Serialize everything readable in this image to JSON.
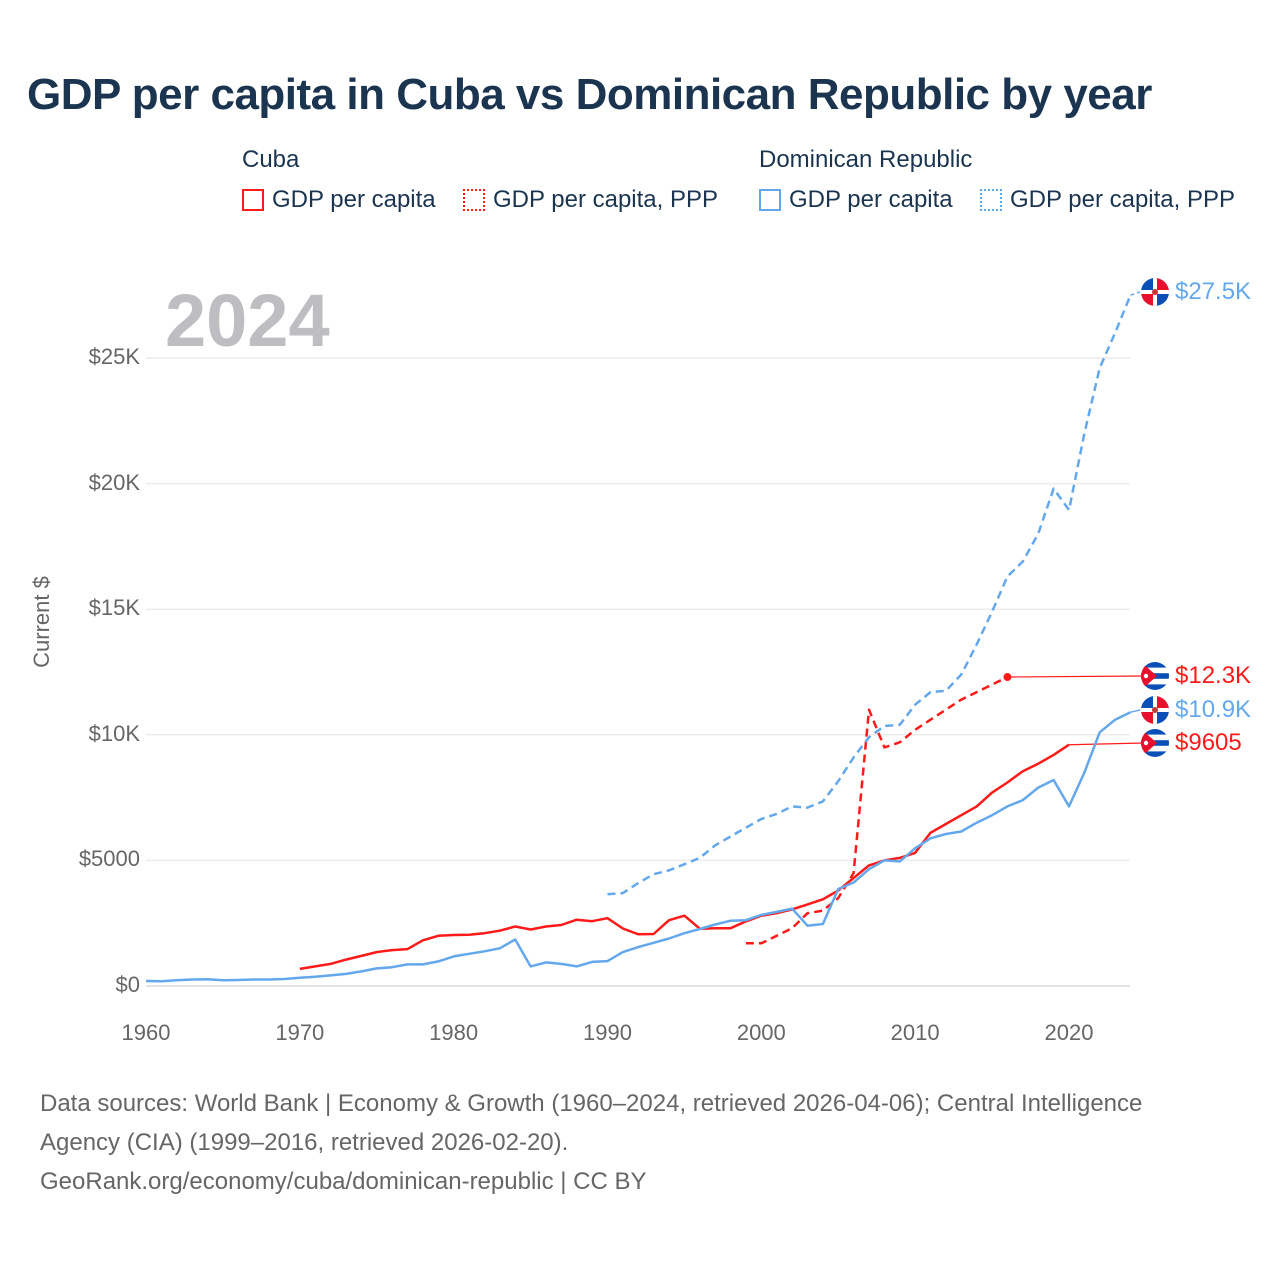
{
  "title": "GDP per capita in Cuba vs Dominican Republic by year",
  "legend": {
    "groups": [
      {
        "name": "Cuba",
        "items": [
          "GDP per capita",
          "GDP per capita, PPP"
        ]
      },
      {
        "name": "Dominican Republic",
        "items": [
          "GDP per capita",
          "GDP per capita, PPP"
        ]
      }
    ]
  },
  "colors": {
    "cuba": "#ff1a1a",
    "dr": "#64a8eb"
  },
  "chart_data": {
    "type": "line",
    "title": "GDP per capita in Cuba vs Dominican Republic by year",
    "year_label": "2024",
    "xlabel": "",
    "ylabel": "Current $",
    "xlim": [
      1960,
      2024
    ],
    "ylim": [
      0,
      28000
    ],
    "x_ticks": [
      1960,
      1970,
      1980,
      1990,
      2000,
      2010,
      2020
    ],
    "x_tick_labels": [
      "1960",
      "1970",
      "1980",
      "1990",
      "2000",
      "2010",
      "2020"
    ],
    "y_ticks": [
      0,
      5000,
      10000,
      15000,
      20000,
      25000
    ],
    "y_tick_labels": [
      "$0",
      "$5000",
      "$10K",
      "$15K",
      "$20K",
      "$25K"
    ],
    "grid": true,
    "legend_placement": "top",
    "series": [
      {
        "name": "Cuba — GDP per capita",
        "country": "cuba",
        "dashed": false,
        "start": 1970,
        "values": [
          680,
          780,
          880,
          1050,
          1200,
          1350,
          1430,
          1470,
          1820,
          2000,
          2030,
          2040,
          2100,
          2200,
          2370,
          2250,
          2370,
          2430,
          2640,
          2580,
          2700,
          2290,
          2060,
          2070,
          2620,
          2800,
          2280,
          2300,
          2300,
          2570,
          2800,
          2900,
          3050,
          3250,
          3450,
          3800,
          4300,
          4800,
          5000,
          5100,
          5300,
          6100,
          6450,
          6800,
          7150,
          7700,
          8100,
          8550,
          8850,
          9200,
          9605
        ],
        "end_label": "$9605"
      },
      {
        "name": "Cuba — GDP per capita, PPP",
        "country": "cuba",
        "dashed": true,
        "start": 1999,
        "values": [
          1700,
          1700,
          2000,
          2300,
          2900,
          3000,
          3500,
          4500,
          11000,
          9500,
          9700,
          10200,
          10600,
          11000,
          11400,
          11700,
          12000,
          12300
        ],
        "end_label": "$12.3K"
      },
      {
        "name": "Dominican Republic — GDP per capita",
        "country": "dr",
        "dashed": false,
        "start": 1960,
        "values": [
          200,
          190,
          230,
          260,
          270,
          230,
          240,
          260,
          260,
          280,
          330,
          370,
          420,
          480,
          580,
          700,
          750,
          860,
          860,
          980,
          1180,
          1280,
          1380,
          1500,
          1850,
          780,
          940,
          880,
          780,
          960,
          990,
          1350,
          1550,
          1720,
          1890,
          2100,
          2270,
          2450,
          2600,
          2620,
          2830,
          2950,
          3080,
          2400,
          2470,
          3860,
          4120,
          4650,
          5000,
          4960,
          5480,
          5880,
          6050,
          6150,
          6500,
          6800,
          7150,
          7400,
          7900,
          8200,
          7150,
          8500,
          10100,
          10600,
          10900
        ],
        "end_label": "$10.9K"
      },
      {
        "name": "Dominican Republic — GDP per capita, PPP",
        "country": "dr",
        "dashed": true,
        "start": 1990,
        "values": [
          3650,
          3700,
          4100,
          4450,
          4600,
          4850,
          5100,
          5600,
          5950,
          6300,
          6650,
          6850,
          7150,
          7100,
          7350,
          8150,
          9100,
          9900,
          10350,
          10400,
          11200,
          11700,
          11750,
          12400,
          13600,
          14900,
          16300,
          16900,
          18000,
          19800,
          18950,
          22000,
          24600,
          26000,
          27500
        ],
        "end_label": "$27.5K"
      }
    ]
  },
  "footer": {
    "line1": "Data sources: World Bank | Economy & Growth (1960–2024, retrieved 2026-04-06); Central Intelligence",
    "line2": "Agency (CIA) (1999–2016, retrieved 2026-02-20).",
    "line3": "GeoRank.org/economy/cuba/dominican-republic | CC BY"
  }
}
